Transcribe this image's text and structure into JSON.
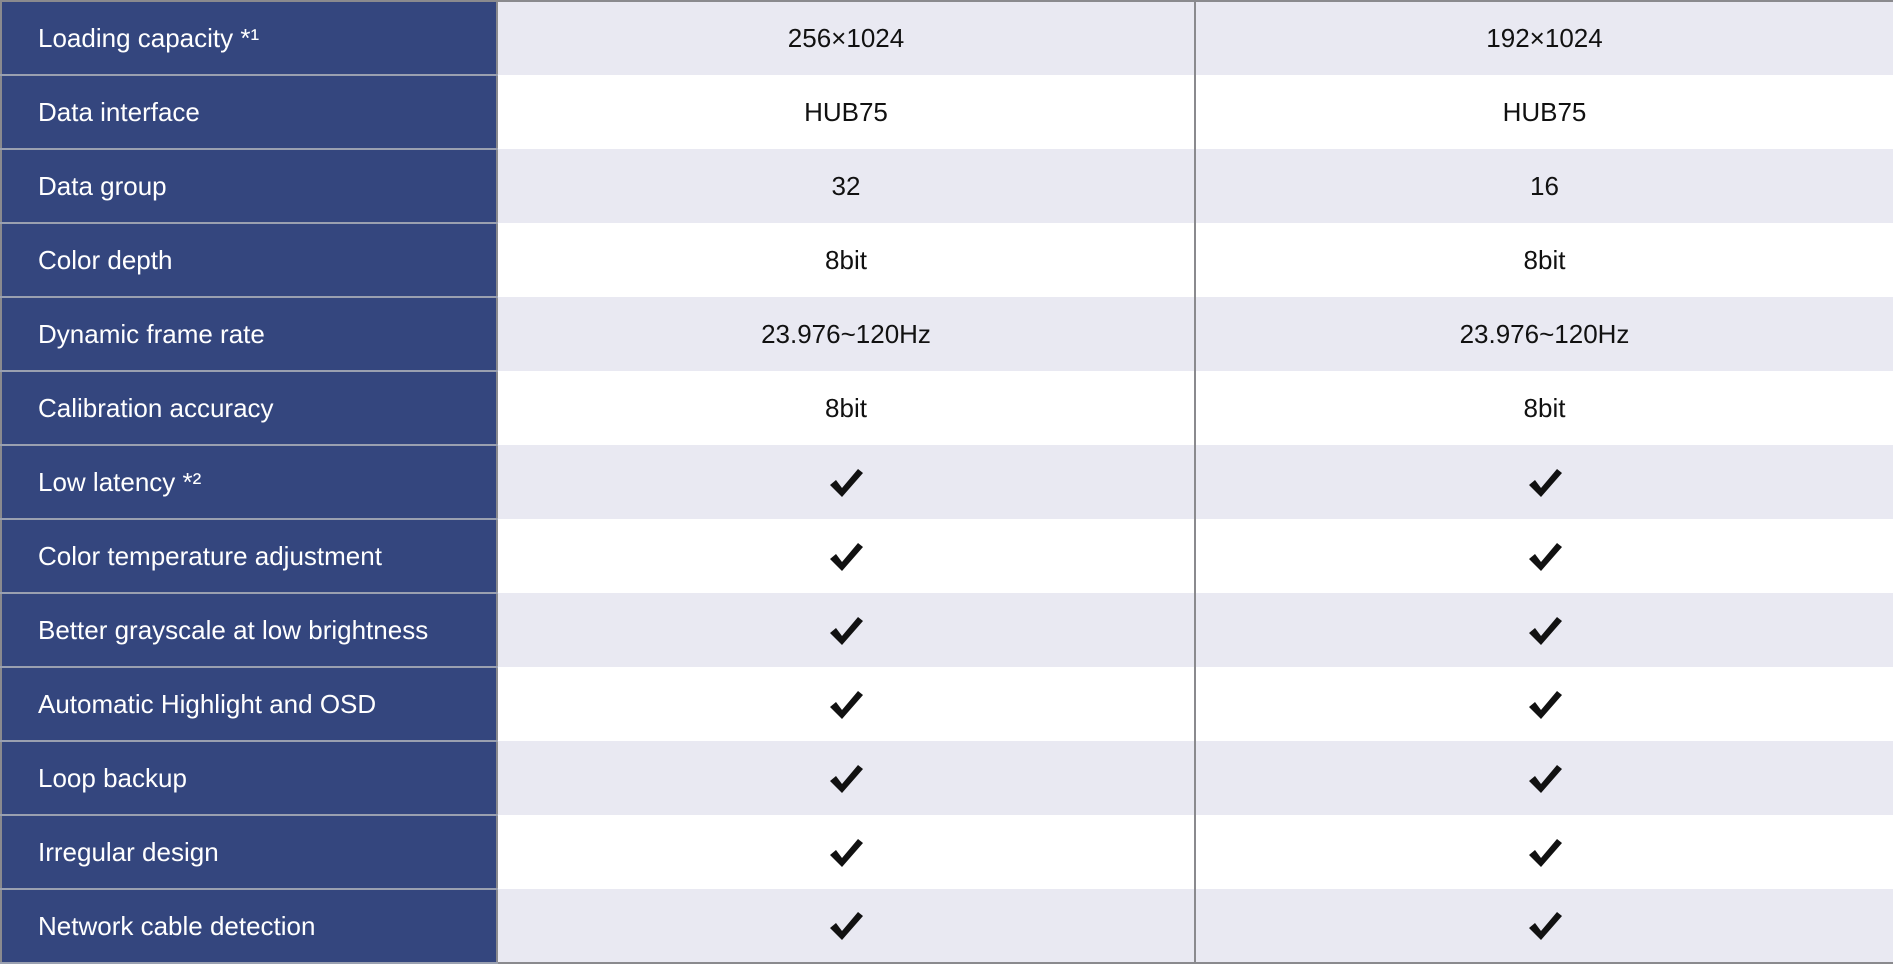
{
  "rows": [
    {
      "label": "Loading capacity *¹",
      "a": "256×1024",
      "b": "192×1024"
    },
    {
      "label": "Data interface",
      "a": "HUB75",
      "b": "HUB75"
    },
    {
      "label": "Data group",
      "a": "32",
      "b": "16"
    },
    {
      "label": "Color depth",
      "a": "8bit",
      "b": "8bit"
    },
    {
      "label": "Dynamic frame rate",
      "a": "23.976~120Hz",
      "b": "23.976~120Hz"
    },
    {
      "label": "Calibration accuracy",
      "a": "8bit",
      "b": "8bit"
    },
    {
      "label": "Low latency *²",
      "a": "check",
      "b": "check"
    },
    {
      "label": "Color temperature adjustment",
      "a": "check",
      "b": "check"
    },
    {
      "label": "Better grayscale at low brightness",
      "a": "check",
      "b": "check"
    },
    {
      "label": "Automatic Highlight and OSD",
      "a": "check",
      "b": "check"
    },
    {
      "label": "Loop backup",
      "a": "check",
      "b": "check"
    },
    {
      "label": "Irregular design",
      "a": "check",
      "b": "check"
    },
    {
      "label": "Network cable detection",
      "a": "check",
      "b": "check"
    }
  ],
  "colors": {
    "label_bg": "#34467e",
    "stripe": "#e9e9f2",
    "check": "#111111"
  }
}
